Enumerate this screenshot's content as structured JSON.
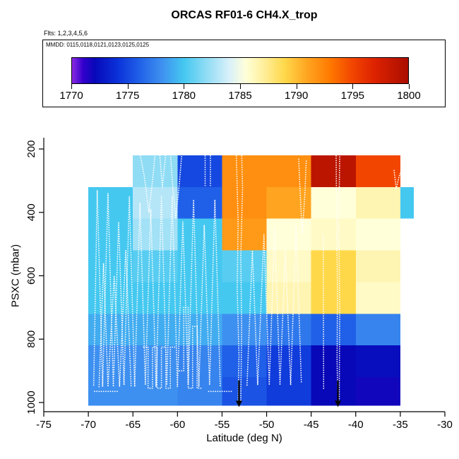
{
  "title": "ORCAS RF01-6 CH4.X_trop",
  "flights_label": "Flts: 1,2,3,4,5,6",
  "legend": {
    "mmdd_label": "MMDD: 0115,0118,0121,0123,0125,0125",
    "colorbar_ticks": [
      1770,
      1775,
      1780,
      1785,
      1790,
      1795,
      1800
    ],
    "range": [
      1770,
      1800
    ]
  },
  "chart_data": {
    "type": "heatmap",
    "title": "ORCAS RF01-6 CH4.X_trop",
    "xlabel": "Latitude (deg N)",
    "ylabel": "PSXC (mbar)",
    "x_ticks": [
      -75,
      -70,
      -65,
      -60,
      -55,
      -50,
      -45,
      -40,
      -35,
      -30
    ],
    "y_ticks": [
      200,
      400,
      600,
      800,
      1000
    ],
    "xlim": [
      -75,
      -30
    ],
    "ylim": [
      200,
      1000
    ],
    "y_axis_reversed": true,
    "grid": false,
    "colorbar_range": [
      1770,
      1800
    ],
    "colormap_stops": [
      [
        1770,
        "#8A2BE2"
      ],
      [
        1771,
        "#3300CC"
      ],
      [
        1772,
        "#0808B8"
      ],
      [
        1774,
        "#0A30D8"
      ],
      [
        1776,
        "#2060E8"
      ],
      [
        1778,
        "#3E90F0"
      ],
      [
        1780,
        "#45C8F0"
      ],
      [
        1782,
        "#90DCF5"
      ],
      [
        1784,
        "#D8F0FA"
      ],
      [
        1785.5,
        "#FFFFD9"
      ],
      [
        1787,
        "#FFF0A0"
      ],
      [
        1789,
        "#FFD84A"
      ],
      [
        1791,
        "#FFA420"
      ],
      [
        1793,
        "#FF7A00"
      ],
      [
        1795,
        "#F24600"
      ],
      [
        1797,
        "#DD2200"
      ],
      [
        1800,
        "#AA0E00"
      ]
    ],
    "lat_edges": [
      -70,
      -65,
      -60,
      -55,
      -50,
      -45,
      -40,
      -35,
      -33.5
    ],
    "pressure_edges": [
      220,
      320,
      420,
      520,
      620,
      720,
      820,
      920,
      1010
    ],
    "values": [
      [
        null,
        1782,
        1775,
        1792,
        1792,
        1799,
        1795,
        null
      ],
      [
        1780,
        1783,
        1776,
        1792,
        1791,
        1785.5,
        1786.5,
        1780
      ],
      [
        1780,
        1782.5,
        1780,
        1791.5,
        1785.5,
        1786,
        1785.5,
        null
      ],
      [
        1780,
        1780.5,
        1780,
        1780.5,
        1786,
        1789,
        1786.5,
        null
      ],
      [
        1780,
        1780,
        1780,
        1780,
        1786.5,
        1789,
        1786,
        null
      ],
      [
        1779,
        1779,
        1779,
        1778,
        1777,
        1776,
        1777.5,
        null
      ],
      [
        1778,
        1778,
        1777.5,
        1776,
        1774.5,
        1772,
        1772.3,
        null
      ],
      [
        1778,
        1778,
        1777.5,
        1775.5,
        1774.5,
        1772,
        1771.8,
        null
      ]
    ],
    "track_color": "#ffffff",
    "arrow_color": "#000000",
    "flight_tracks": [
      [
        [
          -69.4,
          945
        ],
        [
          -69.0,
          330
        ],
        [
          -68.4,
          950
        ],
        [
          -67.8,
          340
        ],
        [
          -67.2,
          950
        ],
        [
          -66.6,
          430
        ],
        [
          -66.0,
          945
        ],
        [
          -65.4,
          350
        ],
        [
          -64.8,
          950
        ],
        [
          -64.2,
          370
        ],
        [
          -63.6,
          945
        ],
        [
          -63.0,
          390
        ],
        [
          -62.4,
          950
        ],
        [
          -61.8,
          350
        ],
        [
          -61.2,
          945
        ],
        [
          -60.6,
          350
        ],
        [
          -60.0,
          950
        ],
        [
          -59.4,
          430
        ],
        [
          -58.8,
          945
        ],
        [
          -58.2,
          360
        ],
        [
          -57.6,
          950
        ],
        [
          -57.0,
          440
        ],
        [
          -56.4,
          945
        ],
        [
          -55.8,
          360
        ],
        [
          -55.2,
          950
        ]
      ],
      [
        [
          -68.8,
          950
        ],
        [
          -68.3,
          560
        ],
        [
          -67.8,
          950
        ],
        [
          -67.1,
          600
        ],
        [
          -66.5,
          950
        ],
        [
          -65.8,
          520
        ],
        [
          -65.2,
          950
        ]
      ],
      [
        [
          -63.8,
          825
        ],
        [
          -63.3,
          825
        ],
        [
          -63.3,
          955
        ],
        [
          -62.8,
          955
        ],
        [
          -62.8,
          825
        ],
        [
          -62.3,
          825
        ],
        [
          -62.3,
          955
        ],
        [
          -61.8,
          955
        ],
        [
          -61.8,
          825
        ],
        [
          -61.3,
          825
        ],
        [
          -61.3,
          955
        ],
        [
          -60.8,
          955
        ],
        [
          -60.8,
          825
        ],
        [
          -60.3,
          825
        ]
      ],
      [
        [
          -59.8,
          900
        ],
        [
          -59.3,
          900
        ],
        [
          -59.3,
          700
        ],
        [
          -58.8,
          700
        ],
        [
          -58.8,
          955
        ],
        [
          -58.3,
          955
        ],
        [
          -58.3,
          760
        ],
        [
          -57.8,
          760
        ],
        [
          -57.8,
          955
        ],
        [
          -57.3,
          955
        ]
      ],
      [
        [
          -64.2,
          215
        ],
        [
          -63.7,
          290
        ],
        [
          -63.2,
          400
        ],
        [
          -62.8,
          300
        ],
        [
          -62.5,
          212
        ],
        [
          -62.0,
          212
        ],
        [
          -61.7,
          320
        ],
        [
          -61.3,
          212
        ],
        [
          -60.8,
          212
        ],
        [
          -60.5,
          330
        ],
        [
          -60.2,
          420
        ],
        [
          -59.8,
          310
        ],
        [
          -59.5,
          212
        ]
      ],
      [
        [
          -56.9,
          208
        ],
        [
          -56.9,
          315
        ]
      ],
      [
        [
          -56.3,
          208
        ],
        [
          -56.3,
          315
        ]
      ],
      [
        [
          -53.4,
          215
        ],
        [
          -53.2,
          430
        ],
        [
          -53.3,
          640
        ],
        [
          -53.1,
          850
        ],
        [
          -53.2,
          995
        ],
        [
          -52.9,
          995
        ],
        [
          -52.8,
          760
        ],
        [
          -52.9,
          540
        ],
        [
          -52.7,
          320
        ],
        [
          -52.8,
          215
        ]
      ],
      [
        [
          -52.2,
          945
        ],
        [
          -51.6,
          520
        ],
        [
          -51.0,
          945
        ],
        [
          -50.3,
          470
        ],
        [
          -49.7,
          945
        ],
        [
          -49.1,
          450
        ],
        [
          -48.5,
          945
        ],
        [
          -47.9,
          520
        ],
        [
          -47.3,
          945
        ],
        [
          -46.7,
          440
        ],
        [
          -46.1,
          940
        ]
      ],
      [
        [
          -46.4,
          232
        ],
        [
          -46.25,
          330
        ],
        [
          -46.0,
          470
        ],
        [
          -45.7,
          340
        ],
        [
          -45.55,
          235
        ]
      ],
      [
        [
          -43.65,
          470
        ],
        [
          -43.6,
          960
        ]
      ],
      [
        [
          -42.2,
          215
        ],
        [
          -42.15,
          430
        ],
        [
          -42.05,
          650
        ],
        [
          -42.1,
          870
        ],
        [
          -42.0,
          995
        ],
        [
          -41.85,
          995
        ],
        [
          -41.8,
          700
        ],
        [
          -41.9,
          440
        ],
        [
          -41.8,
          215
        ]
      ],
      [
        [
          -35.7,
          268
        ],
        [
          -35.45,
          325
        ],
        [
          -35.15,
          288
        ],
        [
          -34.9,
          268
        ],
        [
          -34.65,
          312
        ]
      ],
      [
        [
          -69.3,
          965
        ],
        [
          -66.6,
          965
        ]
      ],
      [
        [
          -56.5,
          965
        ],
        [
          -53.8,
          965
        ]
      ]
    ],
    "arrows": [
      {
        "lat": -53.1,
        "p_start": 930,
        "p_end": 1012
      },
      {
        "lat": -42.0,
        "p_start": 930,
        "p_end": 1012
      }
    ]
  }
}
